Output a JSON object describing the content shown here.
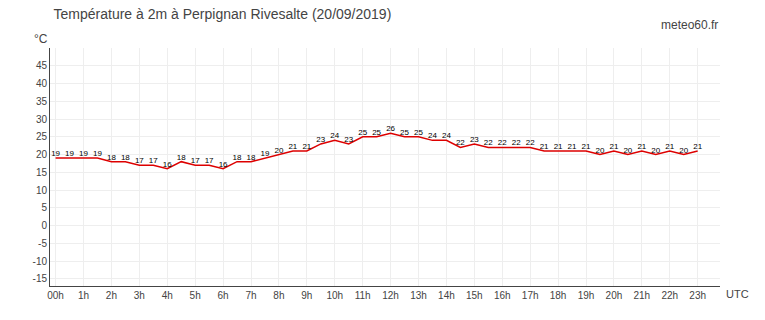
{
  "chart_data": {
    "type": "line",
    "title": "Température à 2m à Perpignan Rivesalte (20/09/2019)",
    "ylabel": "°C",
    "xlabel": "UTC",
    "annotations": [
      "meteo60.fr"
    ],
    "x": [
      0,
      0.5,
      1,
      1.5,
      2,
      2.5,
      3,
      3.5,
      4,
      4.5,
      5,
      5.5,
      6,
      6.5,
      7,
      7.5,
      8,
      8.5,
      9,
      9.5,
      10,
      10.5,
      11,
      11.5,
      12,
      12.5,
      13,
      13.5,
      14,
      14.5,
      15,
      15.5,
      16,
      16.5,
      17,
      17.5,
      18,
      18.5,
      19,
      19.5,
      20,
      20.5,
      21,
      21.5,
      22,
      22.5,
      23
    ],
    "values": [
      19,
      19,
      19,
      19,
      18,
      18,
      17,
      17,
      16,
      18,
      17,
      17,
      16,
      18,
      18,
      19,
      20,
      21,
      21,
      23,
      24,
      23,
      25,
      25,
      26,
      25,
      25,
      24,
      24,
      22,
      23,
      22,
      22,
      22,
      22,
      21,
      21,
      21,
      21,
      20,
      21,
      20,
      21,
      20,
      21,
      20,
      21
    ],
    "color": "#dd0000",
    "xlim": [
      -0.2,
      23.8
    ],
    "xticks": [
      {
        "value": 0,
        "label": "00h"
      },
      {
        "value": 1,
        "label": "1h"
      },
      {
        "value": 2,
        "label": "2h"
      },
      {
        "value": 3,
        "label": "3h"
      },
      {
        "value": 4,
        "label": "4h"
      },
      {
        "value": 5,
        "label": "5h"
      },
      {
        "value": 6,
        "label": "6h"
      },
      {
        "value": 7,
        "label": "7h"
      },
      {
        "value": 8,
        "label": "8h"
      },
      {
        "value": 9,
        "label": "9h"
      },
      {
        "value": 10,
        "label": "10h"
      },
      {
        "value": 11,
        "label": "11h"
      },
      {
        "value": 12,
        "label": "12h"
      },
      {
        "value": 13,
        "label": "13h"
      },
      {
        "value": 14,
        "label": "14h"
      },
      {
        "value": 15,
        "label": "15h"
      },
      {
        "value": 16,
        "label": "16h"
      },
      {
        "value": 17,
        "label": "17h"
      },
      {
        "value": 18,
        "label": "18h"
      },
      {
        "value": 19,
        "label": "19h"
      },
      {
        "value": 20,
        "label": "20h"
      },
      {
        "value": 21,
        "label": "21h"
      },
      {
        "value": 22,
        "label": "22h"
      },
      {
        "value": 23,
        "label": "23h"
      }
    ],
    "ylim": [
      -17,
      50
    ],
    "yticks": [
      -15,
      -10,
      -5,
      0,
      5,
      10,
      15,
      20,
      25,
      30,
      35,
      40,
      45
    ],
    "grid": true,
    "data_labels": true
  }
}
